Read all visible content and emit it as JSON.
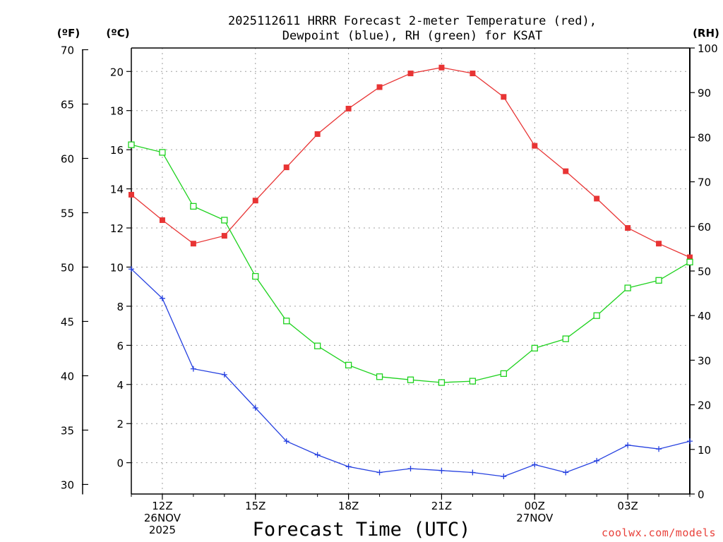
{
  "chart_data": {
    "type": "line",
    "title": [
      "2025112611 HRRR Forecast 2-meter Temperature (red),",
      "Dewpoint (blue), RH (green) for KSAT"
    ],
    "xlabel": "Forecast Time (UTC)",
    "credit": "coolwx.com/models",
    "units": {
      "fahrenheit": "(ºF)",
      "celsius": "(ºC)",
      "rh": "(RH)"
    },
    "x_hours": [
      11,
      12,
      13,
      14,
      15,
      16,
      17,
      18,
      19,
      20,
      21,
      22,
      23,
      24,
      25,
      26,
      27,
      28,
      29
    ],
    "x_ticks": [
      {
        "hour": 12,
        "lines": [
          "12Z",
          "26NOV",
          "2025"
        ]
      },
      {
        "hour": 15,
        "lines": [
          "15Z"
        ]
      },
      {
        "hour": 18,
        "lines": [
          "18Z"
        ]
      },
      {
        "hour": 21,
        "lines": [
          "21Z"
        ]
      },
      {
        "hour": 24,
        "lines": [
          "00Z",
          "27NOV"
        ]
      },
      {
        "hour": 27,
        "lines": [
          "03Z"
        ]
      }
    ],
    "ylim_c": [
      -1.6,
      21.2
    ],
    "ylim_rh": [
      0,
      100
    ],
    "yticks_c": [
      0,
      2,
      4,
      6,
      8,
      10,
      12,
      14,
      16,
      18,
      20
    ],
    "yticks_f": [
      30,
      35,
      40,
      45,
      50,
      55,
      60,
      65,
      70
    ],
    "yticks_rh": [
      0,
      10,
      20,
      30,
      40,
      50,
      60,
      70,
      80,
      90,
      100
    ],
    "grid": true,
    "series": [
      {
        "name": "Temperature",
        "axis": "celsius",
        "color": "#e83434",
        "marker": "filled-square",
        "values": [
          13.7,
          12.4,
          11.2,
          11.6,
          13.4,
          15.1,
          16.8,
          18.1,
          19.2,
          19.9,
          20.2,
          19.9,
          18.7,
          16.2,
          14.9,
          13.5,
          12.0,
          11.2,
          10.5
        ]
      },
      {
        "name": "Dewpoint",
        "axis": "celsius",
        "color": "#2540e0",
        "marker": "plus",
        "values": [
          9.9,
          8.4,
          4.8,
          4.5,
          2.8,
          1.1,
          0.4,
          -0.2,
          -0.5,
          -0.3,
          -0.4,
          -0.5,
          -0.7,
          -0.1,
          -0.5,
          0.1,
          0.9,
          0.7,
          1.1
        ]
      },
      {
        "name": "RH",
        "axis": "rh",
        "color": "#1ed21e",
        "marker": "open-square",
        "values": [
          78.3,
          76.6,
          64.5,
          61.4,
          48.8,
          38.8,
          33.2,
          28.9,
          26.3,
          25.6,
          25.0,
          25.3,
          27.0,
          32.7,
          34.8,
          40.0,
          46.2,
          47.9,
          52.0
        ]
      }
    ]
  }
}
